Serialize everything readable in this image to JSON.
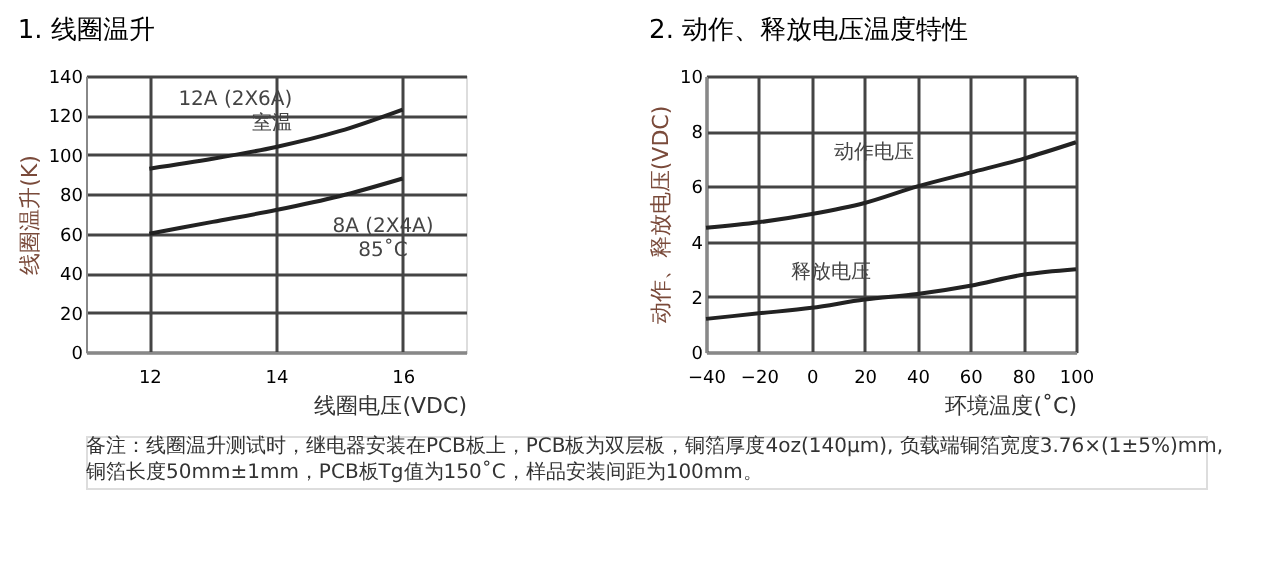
{
  "chart_data": [
    {
      "type": "line",
      "title": "1. 线圈温升",
      "xlabel": "线圈电压(VDC)",
      "ylabel": "线圈温升(K)",
      "x": [
        12,
        13,
        14,
        15,
        16
      ],
      "xlim": [
        11,
        17
      ],
      "xticks": [
        12,
        14,
        16
      ],
      "ylim": [
        0,
        140
      ],
      "yticks": [
        0,
        20,
        40,
        60,
        80,
        100,
        120,
        140
      ],
      "grid": true,
      "series": [
        {
          "color": "#222222",
          "values": [
            93,
            98,
            104,
            112,
            123
          ]
        },
        {
          "color": "#222222",
          "values": [
            60,
            66,
            72,
            79,
            88
          ]
        }
      ],
      "annotations": [
        {
          "text": "12A (2X6A)\n室温",
          "x": 14.7,
          "y": 109
        },
        {
          "text": "8A (2X4A)\n85˚C",
          "x": 15.5,
          "y": 83
        }
      ]
    },
    {
      "type": "line",
      "title": "2. 动作、释放电压温度特性",
      "xlabel": "环境温度(˚C)",
      "ylabel": "动作、释放电压(VDC)",
      "x": [
        -40,
        -20,
        0,
        20,
        40,
        60,
        80,
        100
      ],
      "xlim": [
        -40,
        100
      ],
      "xticks": [
        -40,
        -20,
        0,
        20,
        40,
        60,
        80,
        100
      ],
      "ylim": [
        0,
        10
      ],
      "yticks": [
        0,
        2,
        4,
        6,
        8,
        10
      ],
      "grid": true,
      "series": [
        {
          "color": "#222222",
          "values": [
            4.5,
            4.7,
            5.0,
            5.4,
            6.0,
            6.5,
            7.0,
            7.6
          ]
        },
        {
          "color": "#222222",
          "values": [
            1.2,
            1.4,
            1.6,
            1.9,
            2.1,
            2.4,
            2.8,
            3.0
          ]
        }
      ],
      "annotations": [
        {
          "text": "动作电压",
          "x": 57,
          "y": 6.45
        },
        {
          "text": "释放电压",
          "x": 18,
          "y": 1.8
        },
        "备注：线圈温升测试时，继电器安装在PCB板上，PCB板为双层板，铜箔厚度4oz(140μm), 负载端铜箔宽度3.76×(1±5%)mm, 铜箔长度50mm±1mm，PCB板Tg值为150˚C，样品安装间距为100mm。"
      ]
    }
  ]
}
